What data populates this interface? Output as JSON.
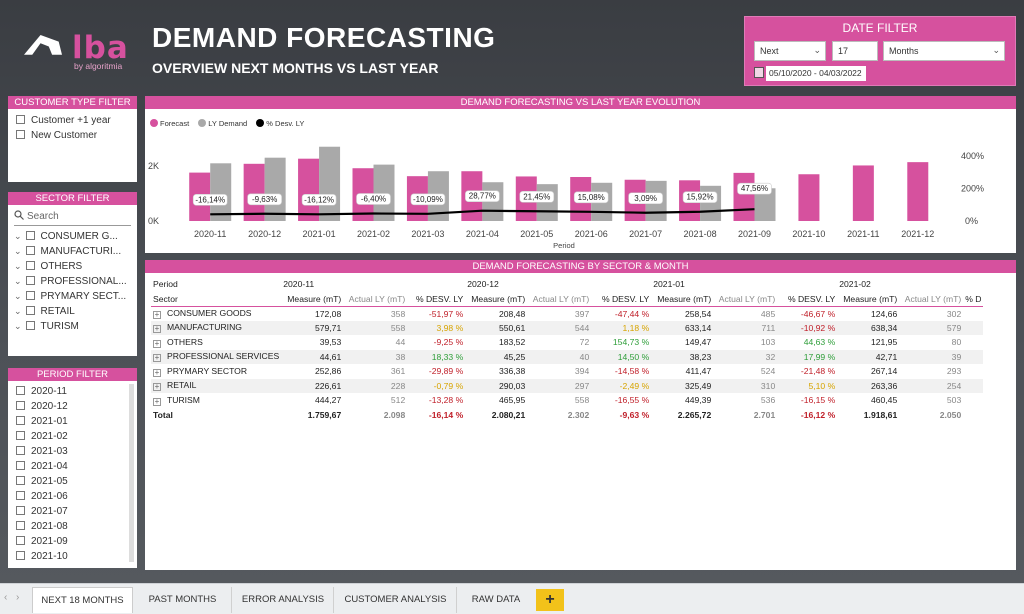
{
  "brand": {
    "name": "lba",
    "tagline": "by algoritmia"
  },
  "header": {
    "title": "DEMAND FORECASTING",
    "subtitle": "OVERVIEW NEXT MONTHS VS LAST YEAR"
  },
  "date_filter": {
    "title": "DATE FILTER",
    "mode": "Next",
    "count": "17",
    "unit": "Months",
    "range": "05/10/2020 - 04/03/2022"
  },
  "customer_filter": {
    "title": "CUSTOMER TYPE FILTER",
    "items": [
      "Customer +1 year",
      "New Customer"
    ]
  },
  "sector_filter": {
    "title": "SECTOR FILTER",
    "search_placeholder": "Search",
    "items": [
      "CONSUMER G...",
      "MANUFACTURI...",
      "OTHERS",
      "PROFESSIONAL...",
      "PRYMARY SECT...",
      "RETAIL",
      "TURISM"
    ]
  },
  "period_filter": {
    "title": "PERIOD FILTER",
    "items": [
      "2020-11",
      "2020-12",
      "2021-01",
      "2021-02",
      "2021-03",
      "2021-04",
      "2021-05",
      "2021-06",
      "2021-07",
      "2021-08",
      "2021-09",
      "2021-10"
    ]
  },
  "chart_data": {
    "type": "bar",
    "title": "DEMAND FORECASTING VS LAST YEAR EVOLUTION",
    "xlabel": "Period",
    "ylabel": "",
    "ylim": [
      0,
      3000
    ],
    "y2lim": [
      0,
      400
    ],
    "y_ticks": [
      "2K",
      "0K"
    ],
    "y2_ticks": [
      "400%",
      "200%",
      "0%"
    ],
    "legend": [
      "Forecast",
      "LY Demand",
      "% Desv. LY"
    ],
    "colors": {
      "forecast": "#d6519e",
      "ly": "#a9a9a9",
      "line": "#000000"
    },
    "categories": [
      "2020-11",
      "2020-12",
      "2021-01",
      "2021-02",
      "2021-03",
      "2021-04",
      "2021-05",
      "2021-06",
      "2021-07",
      "2021-08",
      "2021-09",
      "2021-10",
      "2021-11",
      "2021-12"
    ],
    "series": [
      {
        "name": "Forecast",
        "values": [
          1760,
          2080,
          2266,
          1919,
          1630,
          1810,
          1620,
          1600,
          1500,
          1480,
          1750,
          1700,
          2020,
          2140
        ]
      },
      {
        "name": "LY Demand",
        "values": [
          2098,
          2302,
          2701,
          2050,
          1810,
          1410,
          1340,
          1390,
          1460,
          1280,
          1190,
          null,
          null,
          null
        ]
      },
      {
        "name": "% Desv. LY",
        "values": [
          -16.14,
          -9.63,
          -16.12,
          -6.4,
          -10.09,
          28.77,
          21.45,
          15.08,
          3.09,
          15.92,
          47.56,
          null,
          null,
          null
        ]
      }
    ],
    "data_labels": [
      "-16,14%",
      "-9,63%",
      "-16,12%",
      "-6,40%",
      "-10,09%",
      "28,77%",
      "21,45%",
      "15,08%",
      "3,09%",
      "15,92%",
      "47,56%"
    ]
  },
  "table": {
    "title": "DEMAND FORECASTING BY SECTOR & MONTH",
    "period_label": "Period",
    "sector_label": "Sector",
    "periods": [
      "2020-11",
      "2020-12",
      "2021-01",
      "2021-02"
    ],
    "measure_headers": [
      "Measure (mT)",
      "Actual LY (mT)",
      "% DESV. LY",
      "Measure (mT)",
      "Actual LY (mT)",
      "% DESV. LY",
      "Measure (mT)",
      "Actual LY (mT)",
      "% DESV. LY",
      "Measure (mT)",
      "Actual LY (mT)",
      "% D"
    ],
    "rows": [
      {
        "sector": "CONSUMER GOODS",
        "cells": [
          "172,08",
          "358",
          "-51,97 %",
          "208,48",
          "397",
          "-47,44 %",
          "258,54",
          "485",
          "-46,67 %",
          "124,66",
          "302",
          ""
        ]
      },
      {
        "sector": "MANUFACTURING",
        "cells": [
          "579,71",
          "558",
          "3,98 %",
          "550,61",
          "544",
          "1,18 %",
          "633,14",
          "711",
          "-10,92 %",
          "638,34",
          "579",
          ""
        ]
      },
      {
        "sector": "OTHERS",
        "cells": [
          "39,53",
          "44",
          "-9,25 %",
          "183,52",
          "72",
          "154,73 %",
          "149,47",
          "103",
          "44,63 %",
          "121,95",
          "80",
          ""
        ]
      },
      {
        "sector": "PROFESSIONAL SERVICES",
        "cells": [
          "44,61",
          "38",
          "18,33 %",
          "45,25",
          "40",
          "14,50 %",
          "38,23",
          "32",
          "17,99 %",
          "42,71",
          "39",
          ""
        ]
      },
      {
        "sector": "PRYMARY SECTOR",
        "cells": [
          "252,86",
          "361",
          "-29,89 %",
          "336,38",
          "394",
          "-14,58 %",
          "411,47",
          "524",
          "-21,48 %",
          "267,14",
          "293",
          ""
        ]
      },
      {
        "sector": "RETAIL",
        "cells": [
          "226,61",
          "228",
          "-0,79 %",
          "290,03",
          "297",
          "-2,49 %",
          "325,49",
          "310",
          "5,10 %",
          "263,36",
          "254",
          ""
        ]
      },
      {
        "sector": "TURISM",
        "cells": [
          "444,27",
          "512",
          "-13,28 %",
          "465,95",
          "558",
          "-16,55 %",
          "449,39",
          "536",
          "-16,15 %",
          "460,45",
          "503",
          ""
        ]
      }
    ],
    "total": {
      "label": "Total",
      "cells": [
        "1.759,67",
        "2.098",
        "-16,14 %",
        "2.080,21",
        "2.302",
        "-9,63 %",
        "2.265,72",
        "2.701",
        "-16,12 %",
        "1.918,61",
        "2.050",
        ""
      ]
    }
  },
  "tabs": [
    "NEXT 18 MONTHS",
    "PAST MONTHS",
    "ERROR ANALYSIS",
    "CUSTOMER ANALYSIS",
    "RAW DATA"
  ],
  "add_tab": "+"
}
